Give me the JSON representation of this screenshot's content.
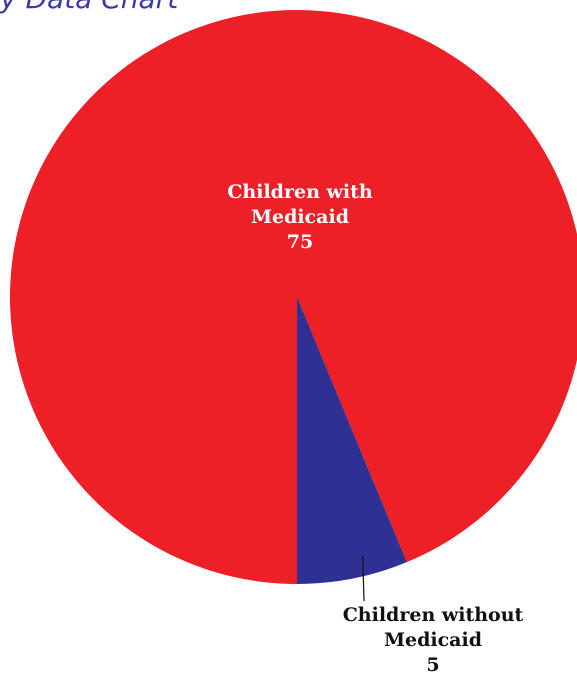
{
  "chart_data": {
    "type": "pie",
    "title": "y Data Chart",
    "categories": [
      "Children with Medicaid",
      "Children without Medicaid"
    ],
    "values": [
      75,
      5
    ],
    "label_lines": [
      [
        "Children with",
        "Medicaid",
        "75"
      ],
      [
        "Children without",
        "Medicaid",
        "5"
      ]
    ],
    "colors": [
      "#ed1f27",
      "#2e3192"
    ],
    "label_colors": [
      "#ffffff",
      "#111111"
    ],
    "title_color": "#3a3aa8",
    "start": "12 o'clock",
    "direction": "clockwise"
  }
}
